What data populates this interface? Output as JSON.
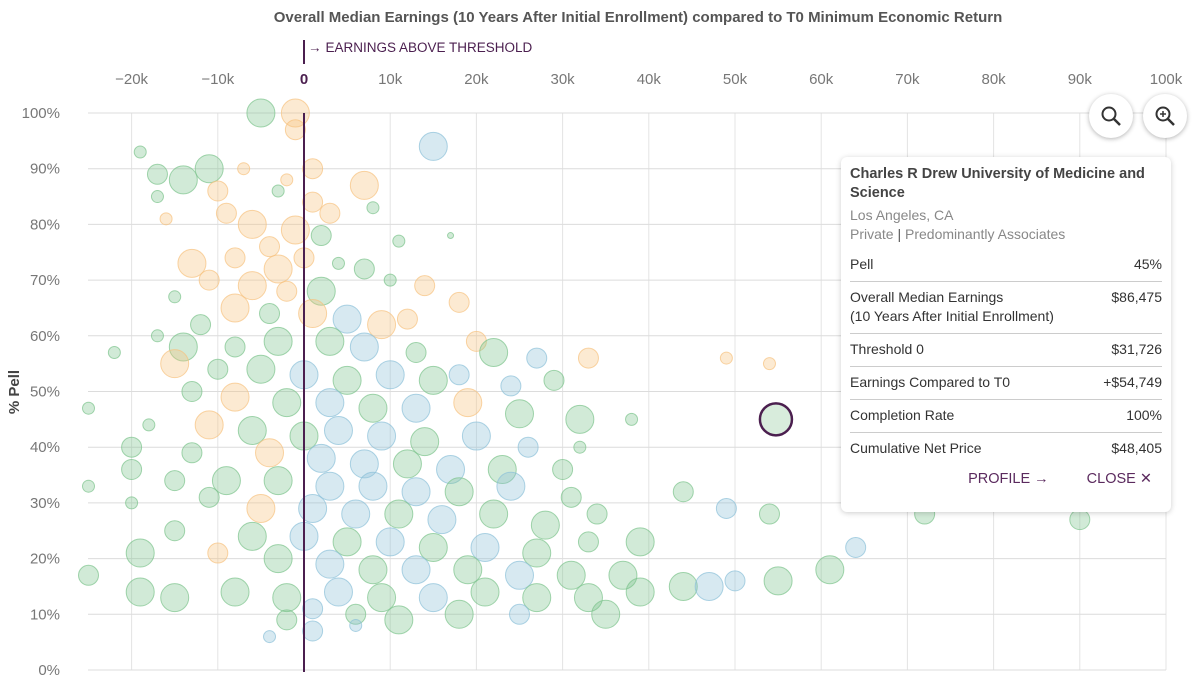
{
  "chart_data": {
    "type": "scatter",
    "title": "Overall Median Earnings (10 Years After Initial Enrollment) compared to T0 Minimum Economic Return",
    "xlabel": "",
    "ylabel": "% Pell",
    "xlim": [
      -25000,
      100000
    ],
    "ylim": [
      0,
      100
    ],
    "x_ticks": [
      "−20k",
      "−10k",
      "0",
      "10k",
      "20k",
      "30k",
      "40k",
      "50k",
      "60k",
      "70k",
      "80k",
      "90k",
      "100k"
    ],
    "x_tick_values": [
      -20000,
      -10000,
      0,
      10000,
      20000,
      30000,
      40000,
      50000,
      60000,
      70000,
      80000,
      90000,
      100000
    ],
    "y_ticks": [
      "0%",
      "10%",
      "20%",
      "30%",
      "40%",
      "50%",
      "60%",
      "70%",
      "80%",
      "90%",
      "100%"
    ],
    "grid": true,
    "threshold_annotation": "EARNINGS ABOVE THRESHOLD",
    "colors": {
      "g": "#7cc38c",
      "o": "#f6c27f",
      "b": "#8cc0d8",
      "highlight": "#4b1f4f",
      "threshold": "#4b1f4f"
    },
    "points_format": [
      "earnings_vs_T0_k",
      "pell_pct",
      "size",
      "group"
    ],
    "points": [
      [
        -5,
        100,
        4,
        "g"
      ],
      [
        -1,
        100,
        4,
        "o"
      ],
      [
        -1,
        97,
        3,
        "o"
      ],
      [
        15,
        94,
        4,
        "b"
      ],
      [
        -19,
        93,
        2,
        "g"
      ],
      [
        -11,
        90,
        4,
        "g"
      ],
      [
        -17,
        89,
        3,
        "g"
      ],
      [
        -14,
        88,
        4,
        "g"
      ],
      [
        1,
        90,
        3,
        "o"
      ],
      [
        -7,
        90,
        2,
        "o"
      ],
      [
        -2,
        88,
        2,
        "o"
      ],
      [
        -17,
        85,
        2,
        "g"
      ],
      [
        -10,
        86,
        3,
        "o"
      ],
      [
        7,
        87,
        4,
        "o"
      ],
      [
        -3,
        86,
        2,
        "g"
      ],
      [
        1,
        84,
        3,
        "o"
      ],
      [
        3,
        82,
        3,
        "o"
      ],
      [
        8,
        83,
        2,
        "g"
      ],
      [
        -9,
        82,
        3,
        "o"
      ],
      [
        -6,
        80,
        4,
        "o"
      ],
      [
        -16,
        81,
        2,
        "o"
      ],
      [
        -1,
        79,
        4,
        "o"
      ],
      [
        2,
        78,
        3,
        "g"
      ],
      [
        11,
        77,
        2,
        "g"
      ],
      [
        17,
        78,
        1,
        "g"
      ],
      [
        -4,
        76,
        3,
        "o"
      ],
      [
        -13,
        73,
        4,
        "o"
      ],
      [
        -8,
        74,
        3,
        "o"
      ],
      [
        -3,
        72,
        4,
        "o"
      ],
      [
        0,
        74,
        3,
        "o"
      ],
      [
        4,
        73,
        2,
        "g"
      ],
      [
        7,
        72,
        3,
        "g"
      ],
      [
        -11,
        70,
        3,
        "o"
      ],
      [
        -6,
        69,
        4,
        "o"
      ],
      [
        -2,
        68,
        3,
        "o"
      ],
      [
        2,
        68,
        4,
        "g"
      ],
      [
        10,
        70,
        2,
        "g"
      ],
      [
        14,
        69,
        3,
        "o"
      ],
      [
        18,
        66,
        3,
        "o"
      ],
      [
        -15,
        67,
        2,
        "g"
      ],
      [
        -8,
        65,
        4,
        "o"
      ],
      [
        -4,
        64,
        3,
        "g"
      ],
      [
        1,
        64,
        4,
        "o"
      ],
      [
        5,
        63,
        4,
        "b"
      ],
      [
        9,
        62,
        4,
        "o"
      ],
      [
        12,
        63,
        3,
        "o"
      ],
      [
        -12,
        62,
        3,
        "g"
      ],
      [
        -17,
        60,
        2,
        "g"
      ],
      [
        -14,
        58,
        4,
        "g"
      ],
      [
        -8,
        58,
        3,
        "g"
      ],
      [
        -3,
        59,
        4,
        "g"
      ],
      [
        3,
        59,
        4,
        "g"
      ],
      [
        7,
        58,
        4,
        "b"
      ],
      [
        13,
        57,
        3,
        "g"
      ],
      [
        20,
        59,
        3,
        "o"
      ],
      [
        22,
        57,
        4,
        "g"
      ],
      [
        27,
        56,
        3,
        "b"
      ],
      [
        33,
        56,
        3,
        "o"
      ],
      [
        -22,
        57,
        2,
        "g"
      ],
      [
        -15,
        55,
        4,
        "o"
      ],
      [
        -10,
        54,
        3,
        "g"
      ],
      [
        -5,
        54,
        4,
        "g"
      ],
      [
        0,
        53,
        4,
        "b"
      ],
      [
        5,
        52,
        4,
        "g"
      ],
      [
        10,
        53,
        4,
        "b"
      ],
      [
        15,
        52,
        4,
        "g"
      ],
      [
        18,
        53,
        3,
        "b"
      ],
      [
        24,
        51,
        3,
        "b"
      ],
      [
        29,
        52,
        3,
        "g"
      ],
      [
        -13,
        50,
        3,
        "g"
      ],
      [
        -8,
        49,
        4,
        "o"
      ],
      [
        -2,
        48,
        4,
        "g"
      ],
      [
        3,
        48,
        4,
        "b"
      ],
      [
        8,
        47,
        4,
        "g"
      ],
      [
        13,
        47,
        4,
        "b"
      ],
      [
        19,
        48,
        4,
        "o"
      ],
      [
        25,
        46,
        4,
        "g"
      ],
      [
        32,
        45,
        4,
        "g"
      ],
      [
        38,
        45,
        2,
        "g"
      ],
      [
        -25,
        47,
        2,
        "g"
      ],
      [
        -18,
        44,
        2,
        "g"
      ],
      [
        -11,
        44,
        4,
        "o"
      ],
      [
        -6,
        43,
        4,
        "g"
      ],
      [
        0,
        42,
        4,
        "g"
      ],
      [
        4,
        43,
        4,
        "b"
      ],
      [
        9,
        42,
        4,
        "b"
      ],
      [
        14,
        41,
        4,
        "g"
      ],
      [
        20,
        42,
        4,
        "b"
      ],
      [
        26,
        40,
        3,
        "b"
      ],
      [
        32,
        40,
        2,
        "g"
      ],
      [
        -20,
        40,
        3,
        "g"
      ],
      [
        -13,
        39,
        3,
        "g"
      ],
      [
        -4,
        39,
        4,
        "o"
      ],
      [
        2,
        38,
        4,
        "b"
      ],
      [
        7,
        37,
        4,
        "b"
      ],
      [
        12,
        37,
        4,
        "g"
      ],
      [
        17,
        36,
        4,
        "b"
      ],
      [
        23,
        36,
        4,
        "g"
      ],
      [
        30,
        36,
        3,
        "g"
      ],
      [
        -20,
        36,
        3,
        "g"
      ],
      [
        -15,
        34,
        3,
        "g"
      ],
      [
        -9,
        34,
        4,
        "g"
      ],
      [
        -3,
        34,
        4,
        "g"
      ],
      [
        3,
        33,
        4,
        "b"
      ],
      [
        8,
        33,
        4,
        "b"
      ],
      [
        13,
        32,
        4,
        "b"
      ],
      [
        18,
        32,
        4,
        "g"
      ],
      [
        24,
        33,
        4,
        "b"
      ],
      [
        31,
        31,
        3,
        "g"
      ],
      [
        44,
        32,
        3,
        "g"
      ],
      [
        -25,
        33,
        2,
        "g"
      ],
      [
        -20,
        30,
        2,
        "g"
      ],
      [
        -11,
        31,
        3,
        "g"
      ],
      [
        -5,
        29,
        4,
        "o"
      ],
      [
        1,
        29,
        4,
        "b"
      ],
      [
        6,
        28,
        4,
        "b"
      ],
      [
        11,
        28,
        4,
        "g"
      ],
      [
        16,
        27,
        4,
        "b"
      ],
      [
        22,
        28,
        4,
        "g"
      ],
      [
        28,
        26,
        4,
        "g"
      ],
      [
        34,
        28,
        3,
        "g"
      ],
      [
        49,
        29,
        3,
        "b"
      ],
      [
        54,
        28,
        3,
        "g"
      ],
      [
        64,
        22,
        3,
        "b"
      ],
      [
        72,
        28,
        3,
        "g"
      ],
      [
        90,
        27,
        3,
        "g"
      ],
      [
        -15,
        25,
        3,
        "g"
      ],
      [
        -6,
        24,
        4,
        "g"
      ],
      [
        0,
        24,
        4,
        "b"
      ],
      [
        5,
        23,
        4,
        "g"
      ],
      [
        10,
        23,
        4,
        "b"
      ],
      [
        15,
        22,
        4,
        "g"
      ],
      [
        21,
        22,
        4,
        "b"
      ],
      [
        27,
        21,
        4,
        "g"
      ],
      [
        33,
        23,
        3,
        "g"
      ],
      [
        39,
        23,
        4,
        "g"
      ],
      [
        -19,
        21,
        4,
        "g"
      ],
      [
        -10,
        21,
        3,
        "o"
      ],
      [
        -3,
        20,
        4,
        "g"
      ],
      [
        3,
        19,
        4,
        "b"
      ],
      [
        8,
        18,
        4,
        "g"
      ],
      [
        13,
        18,
        4,
        "b"
      ],
      [
        19,
        18,
        4,
        "g"
      ],
      [
        25,
        17,
        4,
        "b"
      ],
      [
        31,
        17,
        4,
        "g"
      ],
      [
        37,
        17,
        4,
        "g"
      ],
      [
        50,
        16,
        3,
        "b"
      ],
      [
        55,
        16,
        4,
        "g"
      ],
      [
        61,
        18,
        4,
        "g"
      ],
      [
        -25,
        17,
        3,
        "g"
      ],
      [
        -19,
        14,
        4,
        "g"
      ],
      [
        -15,
        13,
        4,
        "g"
      ],
      [
        -8,
        14,
        4,
        "g"
      ],
      [
        -2,
        13,
        4,
        "g"
      ],
      [
        4,
        14,
        4,
        "b"
      ],
      [
        9,
        13,
        4,
        "g"
      ],
      [
        15,
        13,
        4,
        "b"
      ],
      [
        21,
        14,
        4,
        "g"
      ],
      [
        27,
        13,
        4,
        "g"
      ],
      [
        33,
        13,
        4,
        "g"
      ],
      [
        39,
        14,
        4,
        "g"
      ],
      [
        44,
        15,
        4,
        "g"
      ],
      [
        47,
        15,
        4,
        "b"
      ],
      [
        -2,
        9,
        3,
        "g"
      ],
      [
        1,
        11,
        3,
        "b"
      ],
      [
        6,
        10,
        3,
        "g"
      ],
      [
        11,
        9,
        4,
        "g"
      ],
      [
        18,
        10,
        4,
        "g"
      ],
      [
        25,
        10,
        3,
        "b"
      ],
      [
        35,
        10,
        4,
        "g"
      ],
      [
        -4,
        6,
        2,
        "b"
      ],
      [
        1,
        7,
        3,
        "b"
      ],
      [
        6,
        8,
        2,
        "b"
      ],
      [
        49,
        56,
        2,
        "o"
      ],
      [
        54,
        55,
        2,
        "o"
      ]
    ],
    "highlight": {
      "x": 54749,
      "y": 45
    }
  },
  "toolbar": {
    "search_icon": "search-icon",
    "zoom_in_icon": "zoom-in-icon"
  },
  "tooltip": {
    "name": "Charles R Drew University of Medicine and Science",
    "location": "Los Angeles, CA",
    "control": "Private",
    "separator": "|",
    "type": "Predominantly Associates",
    "rows": [
      {
        "label": "Pell",
        "value": "45%"
      },
      {
        "label": "Overall Median Earnings",
        "label2": "(10 Years After Initial Enrollment)",
        "value": "$86,475"
      },
      {
        "label": "Threshold 0",
        "value": "$31,726"
      },
      {
        "label": "Earnings Compared to T0",
        "value": "+$54,749"
      },
      {
        "label": "Completion Rate",
        "value": "100%"
      },
      {
        "label": "Cumulative Net Price",
        "value": "$48,405"
      }
    ],
    "profile_label": "PROFILE →",
    "close_label": "CLOSE ✕"
  }
}
